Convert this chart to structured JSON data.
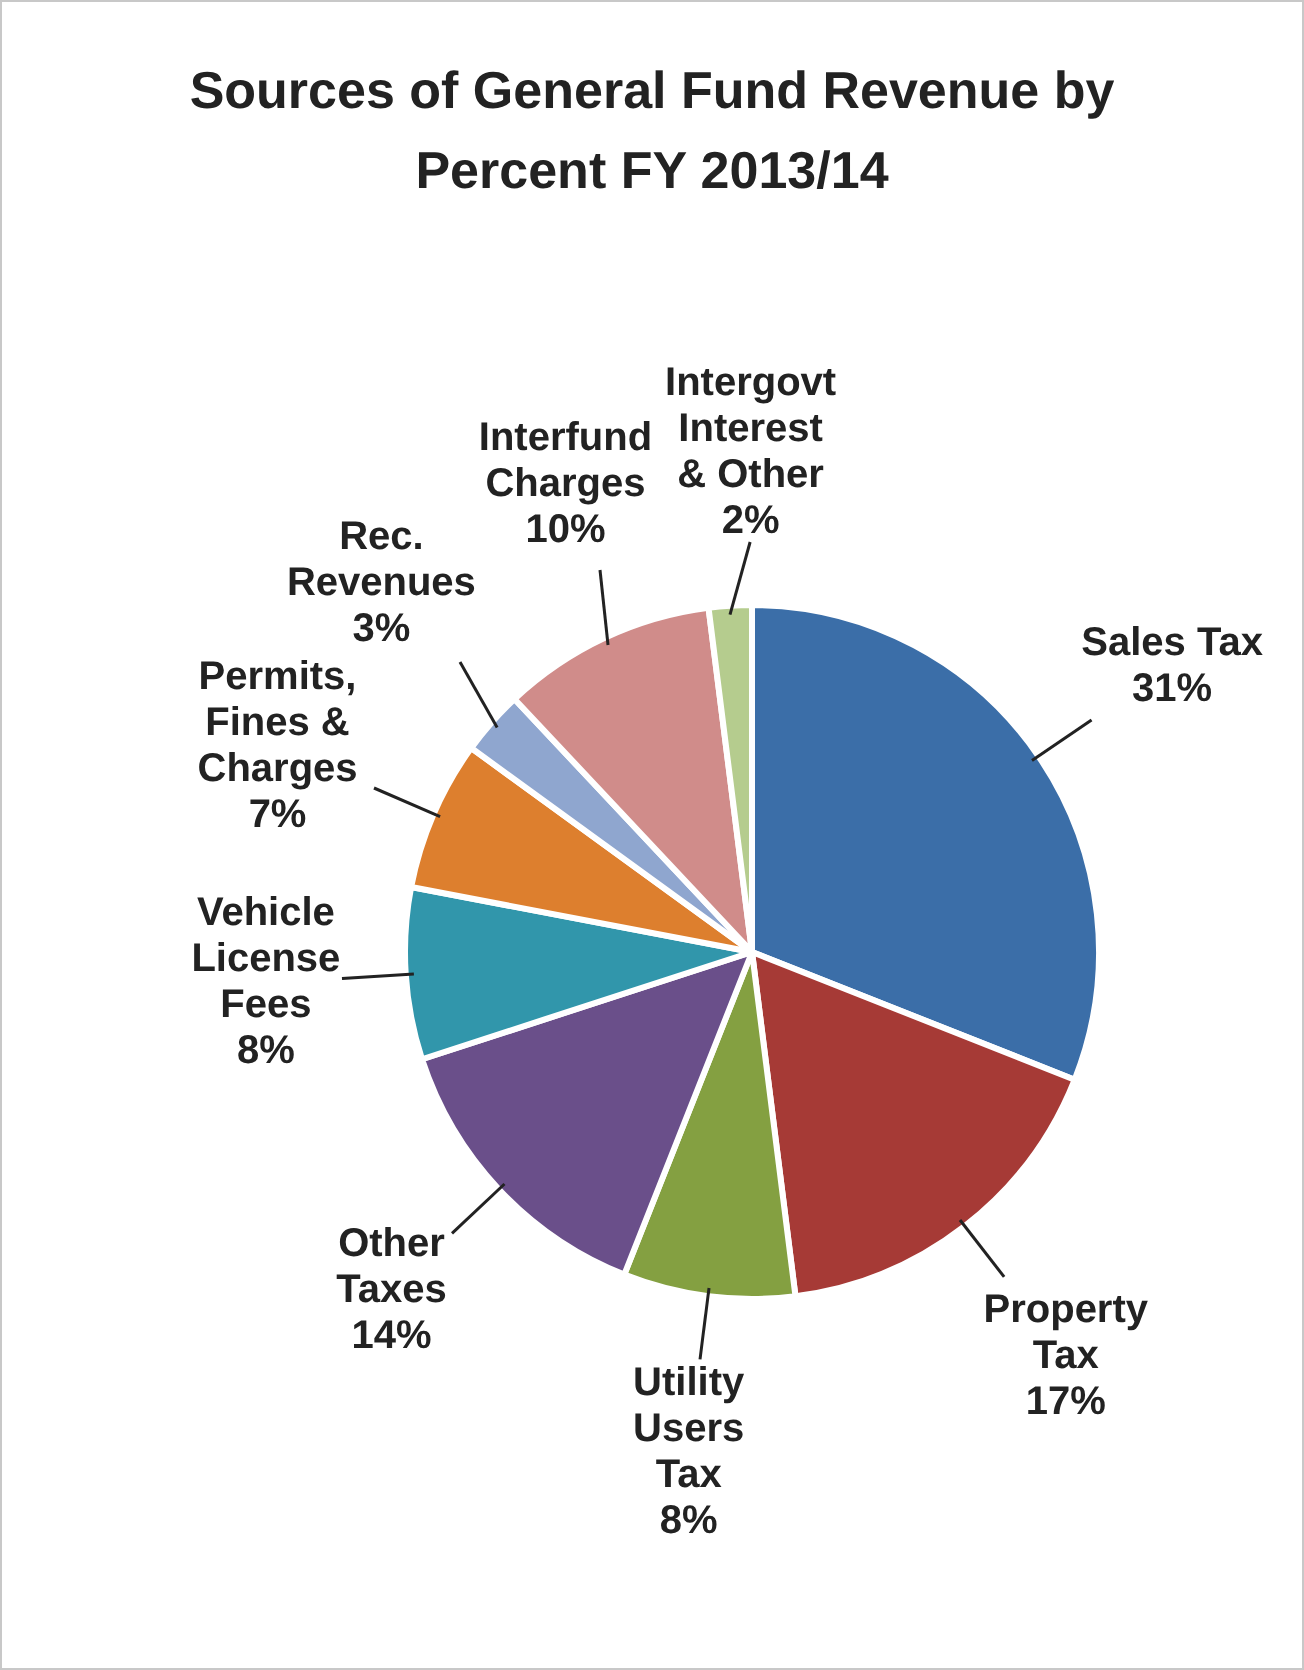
{
  "chart_data": {
    "type": "pie",
    "title": "Sources of General Fund Revenue by Percent FY 2013/14",
    "categories": [
      "Sales Tax",
      "Property\nTax",
      "Utility\nUsers\nTax",
      "Other\nTaxes",
      "Vehicle\nLicense\nFees",
      "Permits,\nFines &\nCharges",
      "Rec.\nRevenues",
      "Interfund\nCharges",
      "Intergovt\nInterest\n& Other"
    ],
    "values": [
      31,
      17,
      8,
      14,
      8,
      7,
      3,
      10,
      2
    ],
    "colors": [
      "#3b6ea8",
      "#a63a36",
      "#84a041",
      "#6a4f8a",
      "#3196ab",
      "#dd7f2e",
      "#8fa6cf",
      "#d08c8a",
      "#b5cc8e"
    ],
    "value_labels": [
      "31%",
      "17%",
      "8%",
      "14%",
      "8%",
      "7%",
      "3%",
      "10%",
      "2%"
    ],
    "legend": false
  }
}
